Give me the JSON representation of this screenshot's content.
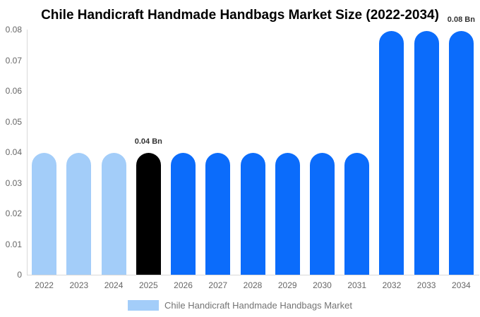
{
  "chart": {
    "title": "Chile Handicraft Handmade Handbags Market Size (2022-2034)",
    "legend": {
      "label": "Chile Handicraft Handmade Handbags Market",
      "swatch_color": "#a3cdf9"
    }
  },
  "chart_data": {
    "type": "bar",
    "title": "Chile Handicraft Handmade Handbags Market Size (2022-2034)",
    "unit": "Bn",
    "categories": [
      "2022",
      "2023",
      "2024",
      "2025",
      "2026",
      "2027",
      "2028",
      "2029",
      "2030",
      "2031",
      "2032",
      "2033",
      "2034"
    ],
    "values": [
      0.0398,
      0.0398,
      0.0398,
      0.0398,
      0.0398,
      0.0398,
      0.0398,
      0.0398,
      0.0398,
      0.0398,
      0.0795,
      0.0795,
      0.0795
    ],
    "bar_colors": [
      "#a3cdf9",
      "#a3cdf9",
      "#a3cdf9",
      "#000000",
      "#0b6cfb",
      "#0b6cfb",
      "#0b6cfb",
      "#0b6cfb",
      "#0b6cfb",
      "#0b6cfb",
      "#0b6cfb",
      "#0b6cfb",
      "#0b6cfb"
    ],
    "annotations": [
      {
        "category": "2025",
        "text": "0.04 Bn"
      },
      {
        "category": "2034",
        "text": "0.08 Bn"
      }
    ],
    "xlabel": "",
    "ylabel": "",
    "ylim": [
      0,
      0.08
    ],
    "ytick_step": 0.01,
    "ytick_labels": [
      "0",
      "0.01",
      "0.02",
      "0.03",
      "0.04",
      "0.05",
      "0.06",
      "0.07",
      "0.08"
    ],
    "grid": false,
    "legend_position": "bottom",
    "legend_entries": [
      {
        "label": "Chile Handicraft Handmade Handbags Market",
        "color": "#a3cdf9"
      }
    ]
  }
}
